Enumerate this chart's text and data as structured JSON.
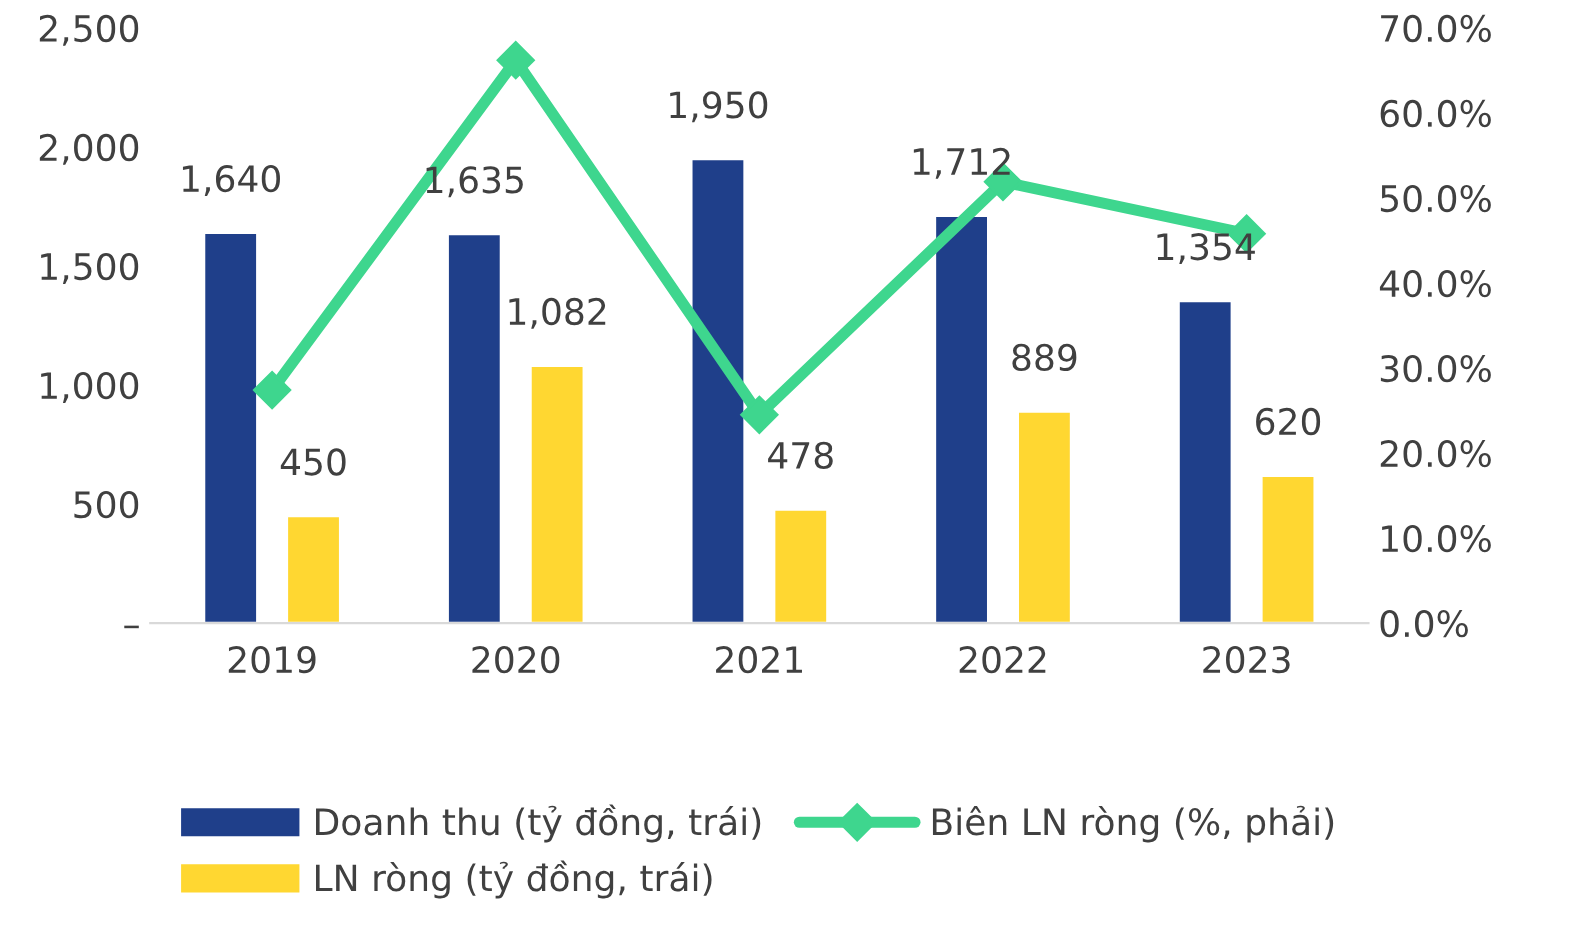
{
  "chart_data": {
    "type": "bar",
    "categories": [
      "2019",
      "2020",
      "2021",
      "2022",
      "2023"
    ],
    "series": [
      {
        "name": "Doanh thu (tỷ đồng, trái)",
        "color": "#1f3f8a",
        "values": [
          1640,
          1635,
          1950,
          1712,
          1354
        ],
        "value_labels": [
          "1,640",
          "1,635",
          "1,950",
          "1,712",
          "1,354"
        ]
      },
      {
        "name": "LN ròng (tỷ đồng, trái)",
        "color": "#ffd731",
        "values": [
          450,
          1082,
          478,
          889,
          620
        ],
        "value_labels": [
          "450",
          "1,082",
          "478",
          "889",
          "620"
        ]
      },
      {
        "name": "Biên LN ròng (%, phải)",
        "type": "line",
        "axis": "y2",
        "color": "#3ed68e",
        "marker": "diamond",
        "values": [
          27.4,
          66.2,
          24.5,
          51.9,
          45.8
        ]
      }
    ],
    "ylim": [
      0,
      2500
    ],
    "yticks": [
      {
        "value": 0,
        "label": "–"
      },
      {
        "value": 500,
        "label": "500"
      },
      {
        "value": 1000,
        "label": "1,000"
      },
      {
        "value": 1500,
        "label": "1,500"
      },
      {
        "value": 2000,
        "label": "2,000"
      },
      {
        "value": 2500,
        "label": "2,500"
      }
    ],
    "y2lim": [
      0,
      70
    ],
    "y2ticks": [
      {
        "value": 0,
        "label": "0.0%"
      },
      {
        "value": 10,
        "label": "10.0%"
      },
      {
        "value": 20,
        "label": "20.0%"
      },
      {
        "value": 30,
        "label": "30.0%"
      },
      {
        "value": 40,
        "label": "40.0%"
      },
      {
        "value": 50,
        "label": "50.0%"
      },
      {
        "value": 60,
        "label": "60.0%"
      },
      {
        "value": 70,
        "label": "70.0%"
      }
    ],
    "grid": false,
    "legend": "bottom"
  }
}
